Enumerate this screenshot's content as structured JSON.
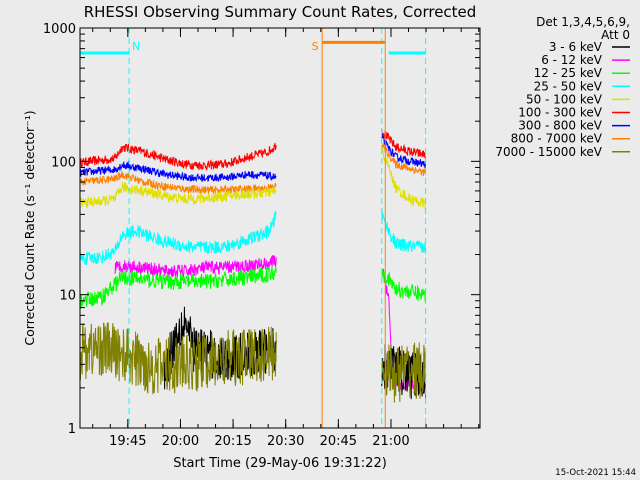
{
  "chart_data": {
    "type": "line",
    "title": "RHESSI Observing Summary Count Rates, Corrected",
    "xlabel": "Start Time (29-May-06 19:31:22)",
    "ylabel": "Corrected Count Rate (s⁻¹ detector⁻¹)",
    "yscale": "log",
    "ylim": [
      1,
      1000
    ],
    "xlim_min": [
      0,
      114
    ],
    "y_ticks": [
      {
        "value": 1,
        "label": "1"
      },
      {
        "value": 10,
        "label": "10"
      },
      {
        "value": 100,
        "label": "100"
      },
      {
        "value": 1000,
        "label": "1000"
      }
    ],
    "x_ticks": [
      {
        "value": 13.63,
        "label": "19:45"
      },
      {
        "value": 28.63,
        "label": "20:00"
      },
      {
        "value": 43.63,
        "label": "20:15"
      },
      {
        "value": 58.63,
        "label": "20:30"
      },
      {
        "value": 73.63,
        "label": "20:45"
      },
      {
        "value": 88.63,
        "label": "21:00"
      }
    ],
    "legend_header": [
      "Det 1,3,4,5,6,9,",
      "Att 0"
    ],
    "legend": [
      {
        "name": "3 - 6 keV",
        "color": "#000000"
      },
      {
        "name": "6 - 12 keV",
        "color": "#ff00ff"
      },
      {
        "name": "12 - 25 keV",
        "color": "#00ff00"
      },
      {
        "name": "25 - 50 keV",
        "color": "#00ffff"
      },
      {
        "name": "50 - 100 keV",
        "color": "#e0e000"
      },
      {
        "name": "100 - 300 keV",
        "color": "#ff0000"
      },
      {
        "name": "300 - 800 keV",
        "color": "#0000ff"
      },
      {
        "name": "800 - 7000 keV",
        "color": "#ff8000"
      },
      {
        "name": "7000 - 15000 keV",
        "color": "#808000"
      }
    ],
    "segments": [
      {
        "start": 0,
        "end": 56
      },
      {
        "start": 86,
        "end": 98.5
      }
    ],
    "series": [
      {
        "name": "100 - 300 keV",
        "color": "#ff0000",
        "noise": 0.035,
        "points": [
          [
            0,
            98
          ],
          [
            6,
            102
          ],
          [
            10,
            105
          ],
          [
            12,
            128
          ],
          [
            18,
            118
          ],
          [
            24,
            104
          ],
          [
            30,
            95
          ],
          [
            36,
            93
          ],
          [
            42,
            96
          ],
          [
            48,
            108
          ],
          [
            53,
            116
          ],
          [
            55,
            125
          ],
          [
            56,
            135
          ],
          [
            86,
            170
          ],
          [
            88,
            148
          ],
          [
            90,
            128
          ],
          [
            94,
            118
          ],
          [
            98.5,
            112
          ]
        ]
      },
      {
        "name": "300 - 800 keV",
        "color": "#0000ff",
        "noise": 0.03,
        "points": [
          [
            0,
            82
          ],
          [
            6,
            85
          ],
          [
            10,
            87
          ],
          [
            12,
            94
          ],
          [
            18,
            88
          ],
          [
            24,
            80
          ],
          [
            30,
            76
          ],
          [
            36,
            75
          ],
          [
            42,
            76
          ],
          [
            48,
            80
          ],
          [
            53,
            78
          ],
          [
            56,
            76
          ],
          [
            86,
            150
          ],
          [
            88,
            125
          ],
          [
            90,
            108
          ],
          [
            94,
            100
          ],
          [
            98.5,
            95
          ]
        ]
      },
      {
        "name": "800 - 7000 keV",
        "color": "#ff8000",
        "noise": 0.03,
        "points": [
          [
            0,
            70
          ],
          [
            6,
            72
          ],
          [
            10,
            74
          ],
          [
            12,
            80
          ],
          [
            18,
            70
          ],
          [
            24,
            65
          ],
          [
            30,
            62
          ],
          [
            36,
            61
          ],
          [
            42,
            61
          ],
          [
            48,
            62
          ],
          [
            53,
            63
          ],
          [
            56,
            65
          ],
          [
            86,
            135
          ],
          [
            88,
            112
          ],
          [
            90,
            95
          ],
          [
            94,
            88
          ],
          [
            98.5,
            82
          ]
        ]
      },
      {
        "name": "50 - 100 keV",
        "color": "#e0e000",
        "noise": 0.04,
        "points": [
          [
            0,
            49
          ],
          [
            6,
            50
          ],
          [
            10,
            52
          ],
          [
            12,
            64
          ],
          [
            18,
            60
          ],
          [
            24,
            55
          ],
          [
            30,
            52
          ],
          [
            36,
            53
          ],
          [
            42,
            55
          ],
          [
            48,
            57
          ],
          [
            53,
            58
          ],
          [
            56,
            60
          ],
          [
            86,
            120
          ],
          [
            88,
            90
          ],
          [
            90,
            63
          ],
          [
            94,
            52
          ],
          [
            98.5,
            48
          ]
        ]
      },
      {
        "name": "25 - 50 keV",
        "color": "#00ffff",
        "noise": 0.05,
        "points": [
          [
            0,
            18.5
          ],
          [
            6,
            19
          ],
          [
            10,
            21
          ],
          [
            12,
            28
          ],
          [
            16,
            30
          ],
          [
            24,
            25
          ],
          [
            30,
            23
          ],
          [
            36,
            22.5
          ],
          [
            42,
            23
          ],
          [
            48,
            26
          ],
          [
            53,
            29
          ],
          [
            55,
            33
          ],
          [
            56,
            45
          ],
          [
            86,
            40
          ],
          [
            88,
            30
          ],
          [
            90,
            24
          ],
          [
            94,
            23
          ],
          [
            98.5,
            22.5
          ]
        ]
      },
      {
        "name": "6 - 12 keV",
        "color": "#ff00ff",
        "noise": 0.05,
        "points": [
          [
            10,
            16
          ],
          [
            12,
            16.5
          ],
          [
            18,
            16
          ],
          [
            24,
            15
          ],
          [
            30,
            15
          ],
          [
            36,
            16
          ],
          [
            42,
            16
          ],
          [
            48,
            16.5
          ],
          [
            53,
            17
          ],
          [
            56,
            18
          ],
          [
            86,
            16
          ],
          [
            88,
            9
          ],
          [
            89,
            2.2
          ],
          [
            98.5,
            2.0
          ]
        ]
      },
      {
        "name": "12 - 25 keV",
        "color": "#00ff00",
        "noise": 0.06,
        "points": [
          [
            0,
            9
          ],
          [
            6,
            9.5
          ],
          [
            10,
            12
          ],
          [
            12,
            13.5
          ],
          [
            18,
            13
          ],
          [
            24,
            12.5
          ],
          [
            30,
            12.5
          ],
          [
            36,
            12.5
          ],
          [
            42,
            13
          ],
          [
            48,
            13.5
          ],
          [
            53,
            14
          ],
          [
            56,
            15
          ],
          [
            86,
            15
          ],
          [
            88,
            13
          ],
          [
            90,
            11
          ],
          [
            94,
            10.5
          ],
          [
            98.5,
            10
          ]
        ]
      },
      {
        "name": "3 - 6 keV",
        "color": "#000000",
        "noise": 0.18,
        "points": [
          [
            24,
            2.6
          ],
          [
            28,
            5.5
          ],
          [
            30,
            6.5
          ],
          [
            32,
            4
          ],
          [
            36,
            3.8
          ],
          [
            40,
            3.2
          ],
          [
            48,
            3.5
          ],
          [
            53,
            3.8
          ],
          [
            56,
            4
          ],
          [
            86,
            3
          ],
          [
            90,
            2.8
          ],
          [
            94,
            2.5
          ],
          [
            98.5,
            2.4
          ]
        ]
      },
      {
        "name": "7000 - 15000 keV",
        "color": "#808000",
        "noise": 0.22,
        "points": [
          [
            0,
            3.8
          ],
          [
            6,
            4.0
          ],
          [
            12,
            3.6
          ],
          [
            20,
            2.9
          ],
          [
            30,
            3.0
          ],
          [
            40,
            3.2
          ],
          [
            48,
            3.5
          ],
          [
            56,
            3.6
          ],
          [
            86,
            3.0
          ],
          [
            90,
            2.5
          ],
          [
            94,
            2.8
          ],
          [
            98.5,
            2.6
          ]
        ]
      }
    ],
    "atten_state_bars": [
      {
        "start": 0,
        "end": 14,
        "value": 650,
        "color": "#00ffff"
      },
      {
        "start": 69,
        "end": 87,
        "value": 780,
        "color": "#ff8000"
      },
      {
        "start": 88,
        "end": 98.5,
        "value": 650,
        "color": "#00ffff"
      }
    ],
    "vlines": [
      {
        "x": 0,
        "color": "#00ffff",
        "style": "solid"
      },
      {
        "x": 14,
        "color": "#00ffff",
        "style": "dashed",
        "label": "N"
      },
      {
        "x": 69,
        "color": "#ff8000",
        "style": "solid",
        "label": "S"
      },
      {
        "x": 87,
        "color": "#ff8000",
        "style": "solid"
      },
      {
        "x": 86,
        "color": "#00ffff",
        "style": "dashed"
      },
      {
        "x": 98.5,
        "color": "#00ffff",
        "style": "dashed"
      }
    ],
    "footer": "15-Oct-2021 15:44"
  }
}
